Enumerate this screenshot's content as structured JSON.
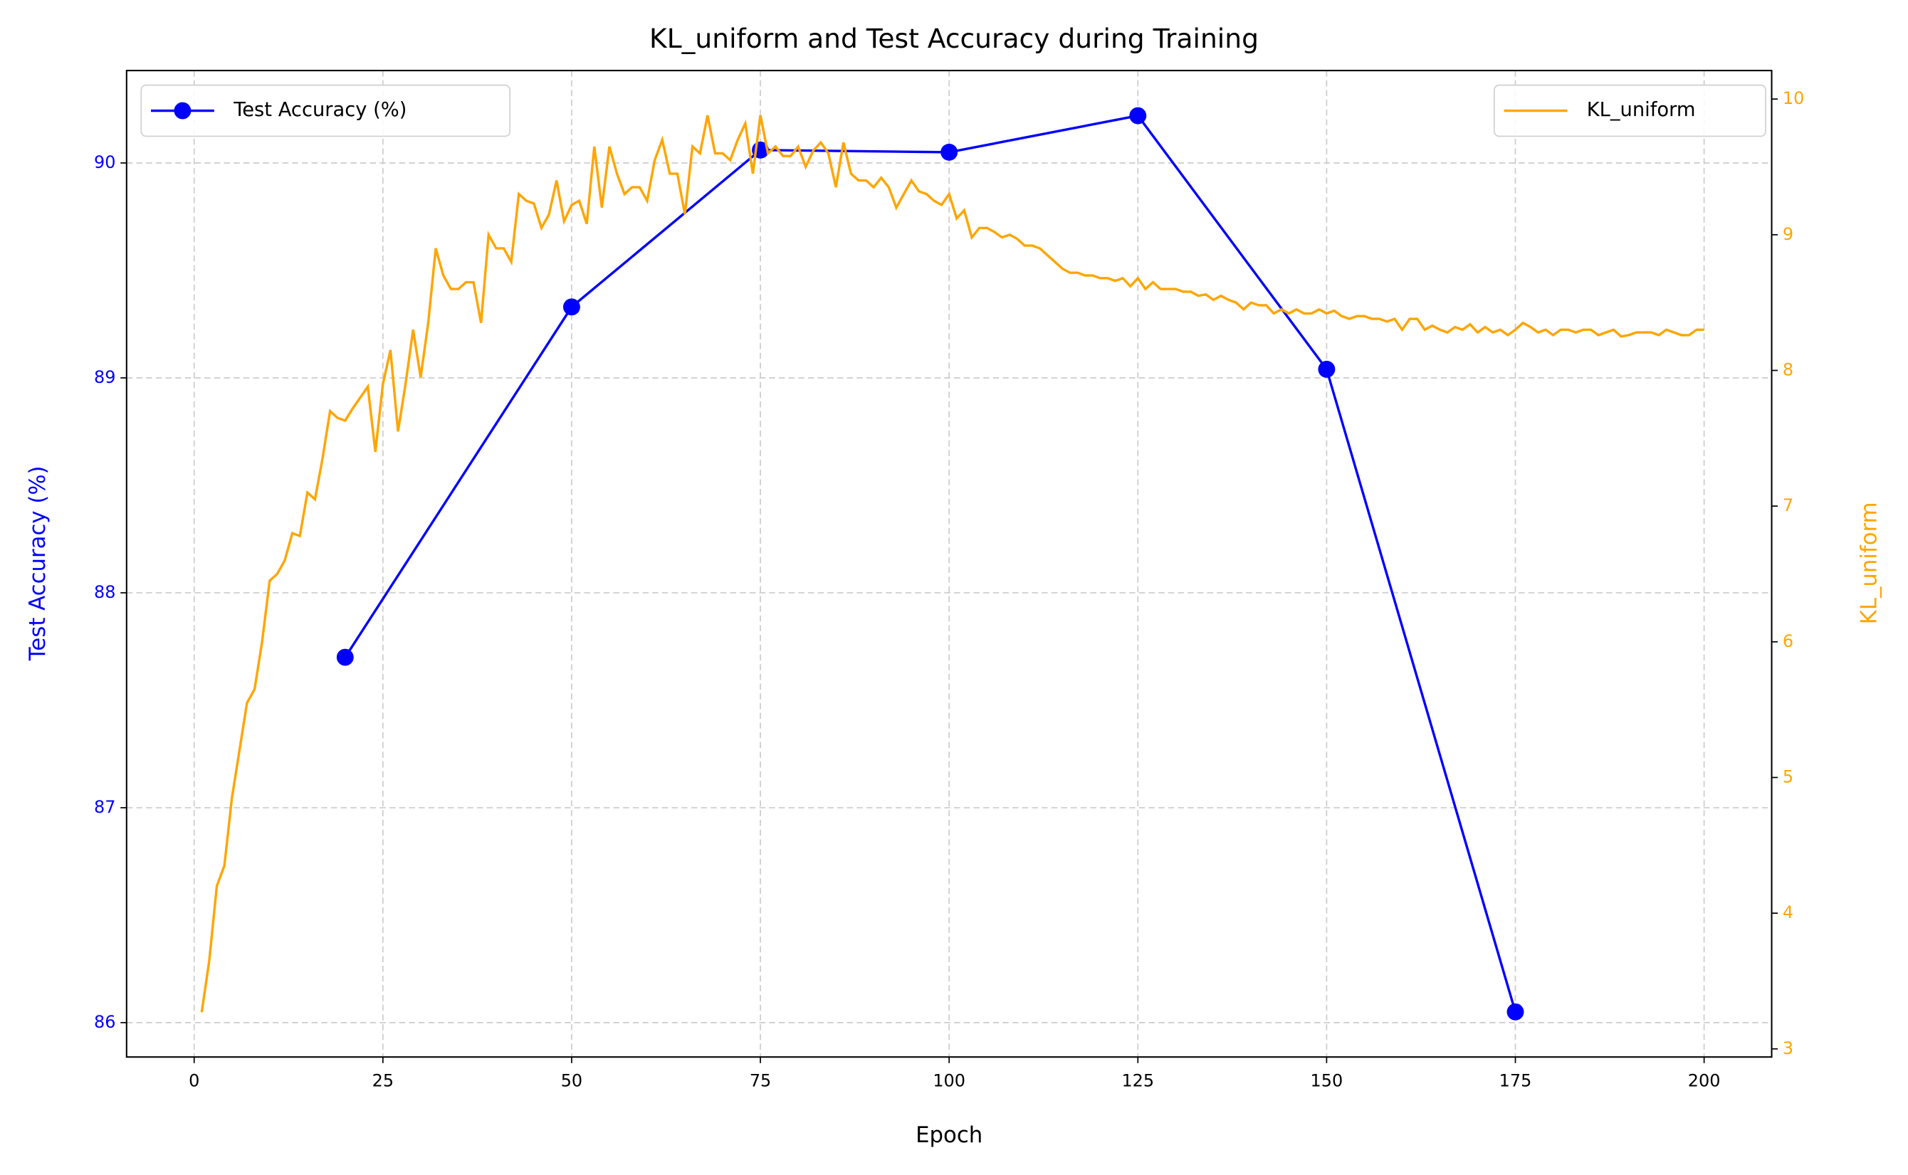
{
  "chart_data": {
    "type": "line",
    "title": "KL_uniform and Test Accuracy during Training",
    "x_label": "Epoch",
    "y_label": "Test Accuracy (%)",
    "y2_label": "KL_uniform",
    "xlim": [
      -8.95,
      208.95
    ],
    "ylim": [
      85.84,
      90.43
    ],
    "y2lim": [
      2.94,
      10.21
    ],
    "xticks": [
      0,
      25,
      50,
      75,
      100,
      125,
      150,
      175,
      200
    ],
    "yticks": [
      86,
      87,
      88,
      89,
      90
    ],
    "y2ticks": [
      3,
      4,
      5,
      6,
      7,
      8,
      9,
      10
    ],
    "grid": true,
    "series": [
      {
        "name": "Test Accuracy (%)",
        "color": "#0000ff",
        "marker": "circle",
        "legend": "upper left",
        "x": [
          20,
          50,
          75,
          100,
          125,
          150,
          175
        ],
        "values": [
          87.7,
          89.33,
          90.06,
          90.05,
          90.22,
          89.04,
          86.05
        ]
      },
      {
        "name": "KL_uniform",
        "color": "#ffa500",
        "axis": "y2",
        "legend": "upper right",
        "x": [
          1,
          2,
          3,
          4,
          5,
          6,
          7,
          8,
          9,
          10,
          11,
          12,
          13,
          14,
          15,
          16,
          17,
          18,
          19,
          20,
          21,
          22,
          23,
          24,
          25,
          26,
          27,
          28,
          29,
          30,
          31,
          32,
          33,
          34,
          35,
          36,
          37,
          38,
          39,
          40,
          41,
          42,
          43,
          44,
          45,
          46,
          47,
          48,
          49,
          50,
          51,
          52,
          53,
          54,
          55,
          56,
          57,
          58,
          59,
          60,
          61,
          62,
          63,
          64,
          65,
          66,
          67,
          68,
          69,
          70,
          71,
          72,
          73,
          74,
          75,
          76,
          77,
          78,
          79,
          80,
          81,
          82,
          83,
          84,
          85,
          86,
          87,
          88,
          89,
          90,
          91,
          92,
          93,
          94,
          95,
          96,
          97,
          98,
          99,
          100,
          101,
          102,
          103,
          104,
          105,
          106,
          107,
          108,
          109,
          110,
          111,
          112,
          113,
          114,
          115,
          116,
          117,
          118,
          119,
          120,
          121,
          122,
          123,
          124,
          125,
          126,
          127,
          128,
          129,
          130,
          131,
          132,
          133,
          134,
          135,
          136,
          137,
          138,
          139,
          140,
          141,
          142,
          143,
          144,
          145,
          146,
          147,
          148,
          149,
          150,
          151,
          152,
          153,
          154,
          155,
          156,
          157,
          158,
          159,
          160,
          161,
          162,
          163,
          164,
          165,
          166,
          167,
          168,
          169,
          170,
          171,
          172,
          173,
          174,
          175,
          176,
          177,
          178,
          179,
          180,
          181,
          182,
          183,
          184,
          185,
          186,
          187,
          188,
          189,
          190,
          191,
          192,
          193,
          194,
          195,
          196,
          197,
          198,
          199,
          200
        ],
        "values": [
          3.27,
          3.65,
          4.2,
          4.35,
          4.85,
          5.2,
          5.55,
          5.65,
          6.0,
          6.45,
          6.5,
          6.6,
          6.8,
          6.78,
          7.1,
          7.05,
          7.35,
          7.7,
          7.65,
          7.63,
          7.72,
          7.8,
          7.88,
          7.4,
          7.9,
          8.15,
          7.55,
          7.9,
          8.3,
          7.95,
          8.35,
          8.9,
          8.7,
          8.6,
          8.6,
          8.65,
          8.65,
          8.35,
          9.0,
          8.9,
          8.9,
          8.8,
          9.3,
          9.25,
          9.23,
          9.05,
          9.15,
          9.4,
          9.1,
          9.22,
          9.25,
          9.08,
          9.65,
          9.2,
          9.65,
          9.45,
          9.3,
          9.35,
          9.35,
          9.25,
          9.55,
          9.7,
          9.45,
          9.45,
          9.15,
          9.65,
          9.6,
          9.88,
          9.6,
          9.6,
          9.55,
          9.7,
          9.82,
          9.45,
          9.88,
          9.6,
          9.65,
          9.58,
          9.58,
          9.65,
          9.5,
          9.62,
          9.68,
          9.6,
          9.35,
          9.68,
          9.45,
          9.4,
          9.4,
          9.35,
          9.42,
          9.35,
          9.2,
          9.3,
          9.4,
          9.32,
          9.3,
          9.25,
          9.22,
          9.3,
          9.12,
          9.18,
          8.98,
          9.05,
          9.05,
          9.02,
          8.98,
          9.0,
          8.97,
          8.92,
          8.92,
          8.9,
          8.85,
          8.8,
          8.75,
          8.72,
          8.72,
          8.7,
          8.7,
          8.68,
          8.68,
          8.66,
          8.68,
          8.62,
          8.68,
          8.6,
          8.65,
          8.6,
          8.6,
          8.6,
          8.58,
          8.58,
          8.55,
          8.56,
          8.52,
          8.55,
          8.52,
          8.5,
          8.45,
          8.5,
          8.48,
          8.48,
          8.42,
          8.45,
          8.42,
          8.45,
          8.42,
          8.42,
          8.45,
          8.42,
          8.44,
          8.4,
          8.38,
          8.4,
          8.4,
          8.38,
          8.38,
          8.36,
          8.38,
          8.3,
          8.38,
          8.38,
          8.3,
          8.33,
          8.3,
          8.28,
          8.32,
          8.3,
          8.34,
          8.28,
          8.32,
          8.28,
          8.3,
          8.26,
          8.3,
          8.35,
          8.32,
          8.28,
          8.3,
          8.26,
          8.3,
          8.3,
          8.28,
          8.3,
          8.3,
          8.26,
          8.28,
          8.3,
          8.25,
          8.26,
          8.28,
          8.28,
          8.28,
          8.26,
          8.3,
          8.28,
          8.26,
          8.26,
          8.3,
          8.3
        ]
      }
    ]
  }
}
